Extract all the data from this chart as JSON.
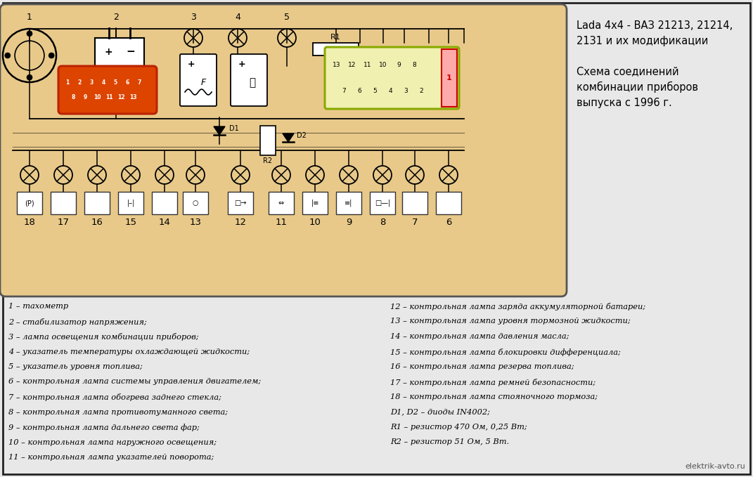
{
  "bg_color": "#e8c98a",
  "outer_bg": "#e8e8e8",
  "panel_border": "#666666",
  "title_right": "Lada 4x4 - ВАЗ 21213, 21214,\n2131 и их модификации\n\nСхема соединений\nкомбинации приборов\nвыпуска с 1996 г.",
  "watermark": "elektrik-avto.ru",
  "legend_left": [
    "1 – тахометр",
    "2 – стабилизатор напряжения;",
    "3 – лампа освещения комбинации приборов;",
    "4 – указатель температуры охлаждающей жидкости;",
    "5 – указатель уровня топлива;",
    "6 – контрольная лампа системы управления двигателем;",
    "7 – контрольная лампа обогрева заднего стекла;",
    "8 – контрольная лампа противотуманного света;",
    "9 – контрольная лампа дальнего света фар;",
    "10 – контрольная лампа наружного освещения;",
    "11 – контрольная лампа указателей поворота;"
  ],
  "legend_right": [
    "12 – контрольная лампа заряда аккумуляторной батареи;",
    "13 – контрольная лампа уровня тормозной жидкости;",
    "14 – контрольная лампа давления масла;",
    "15 – контрольная лампа блокировки дифференциала;",
    "16 – контрольная лампа резерва топлива;",
    "17 – контрольная лампа ремней безопасности;",
    "18 – контрольная лампа стояночного тормоза;",
    "D1, D2 – диоды IN4002;",
    "R1 – резистор 470 Ом, 0,25 Вт;",
    "R2 – резистор 51 Ом, 5 Вт."
  ]
}
